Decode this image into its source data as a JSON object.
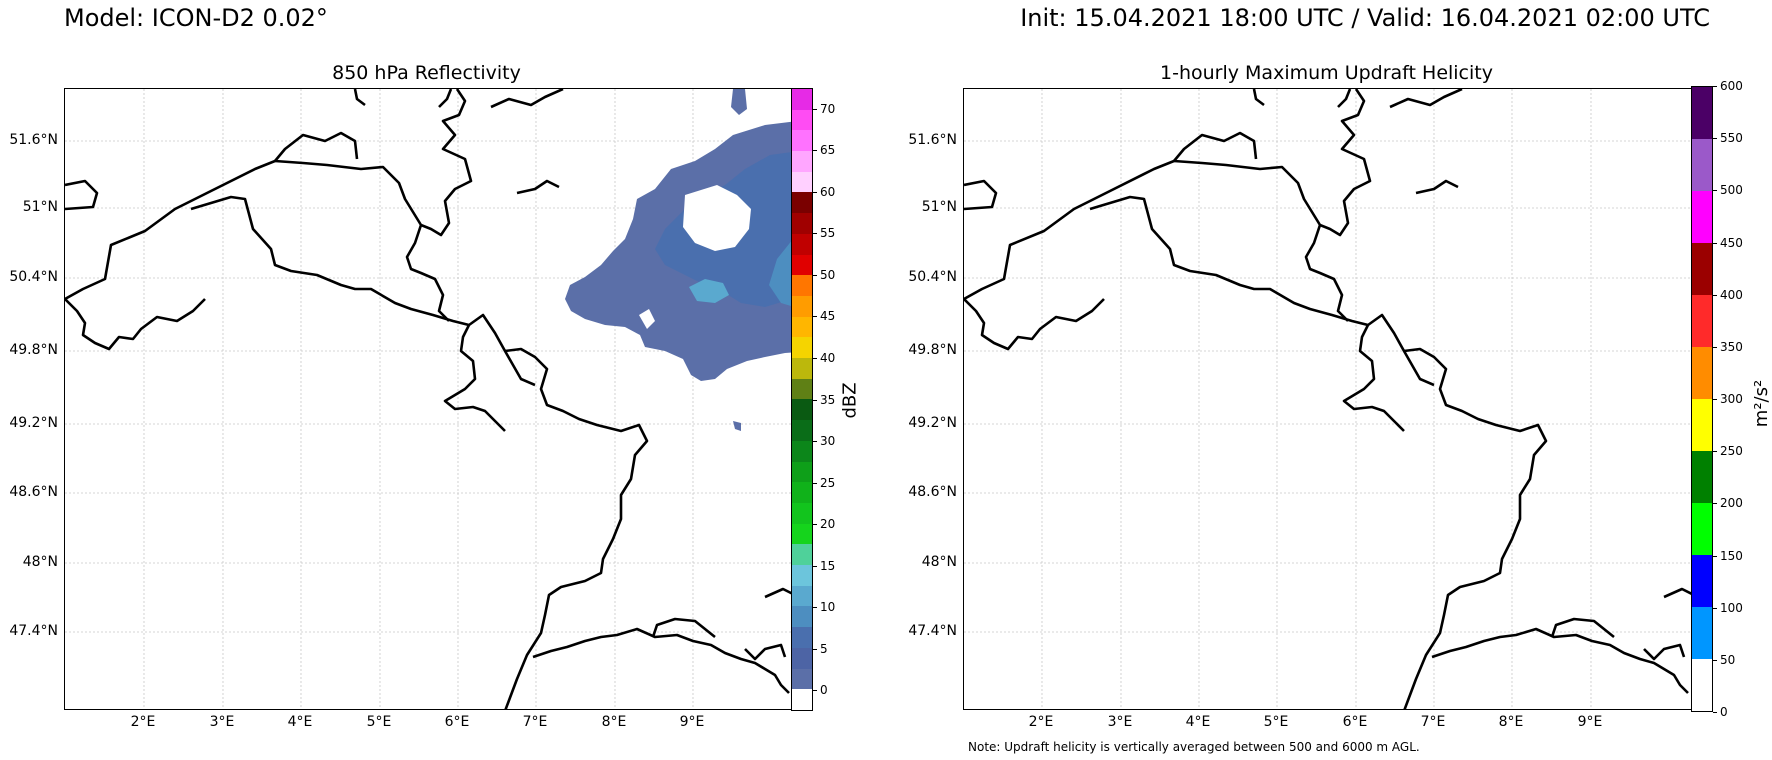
{
  "header": {
    "model": "Model: ICON-D2 0.02°",
    "time": "Init: 15.04.2021 18:00 UTC / Valid: 16.04.2021 02:00 UTC"
  },
  "panel_left": {
    "title": "850 hPa Reflectivity",
    "colorbar": {
      "label": "dBZ",
      "ticks": [
        "0",
        "5",
        "10",
        "15",
        "20",
        "25",
        "30",
        "35",
        "40",
        "45",
        "50",
        "55",
        "60",
        "65",
        "70"
      ],
      "colors": [
        "#ffffff",
        "#5b6fa8",
        "#4d64a5",
        "#4a6fae",
        "#4d8ec0",
        "#5aa9cf",
        "#6cc5dc",
        "#4fd19a",
        "#15d41c",
        "#12c41d",
        "#10b21a",
        "#0e9f19",
        "#0c861a",
        "#0a6d18",
        "#0a5a12",
        "#5f8015",
        "#bcb80c",
        "#f5d400",
        "#ffb600",
        "#ff9c00",
        "#ff7600",
        "#e00000",
        "#c00000",
        "#a00000",
        "#7a0000",
        "#ffd0ff",
        "#ffa6ff",
        "#ff72ff",
        "#ff4cf3",
        "#e62ae6"
      ]
    }
  },
  "panel_right": {
    "title": "1-hourly Maximum Updraft Helicity",
    "colorbar": {
      "label": "m²/s²",
      "ticks": [
        "0",
        "50",
        "100",
        "150",
        "200",
        "250",
        "300",
        "350",
        "400",
        "450",
        "500",
        "550",
        "600"
      ],
      "colors": [
        "#ffffff",
        "#0096ff",
        "#0000ff",
        "#00ff00",
        "#008000",
        "#ffff00",
        "#ff8c00",
        "#ff2a2a",
        "#9b0000",
        "#ff00ff",
        "#9b59c9",
        "#4b0066"
      ]
    },
    "note": "Note: Updraft helicity is vertically averaged between 500 and 6000 m AGL."
  },
  "map": {
    "lat_labels": [
      "51.6°N",
      "51°N",
      "50.4°N",
      "49.8°N",
      "49.2°N",
      "48.6°N",
      "48°N",
      "47.4°N"
    ],
    "lon_labels": [
      "2°E",
      "3°E",
      "4°E",
      "5°E",
      "6°E",
      "7°E",
      "8°E",
      "9°E"
    ]
  }
}
